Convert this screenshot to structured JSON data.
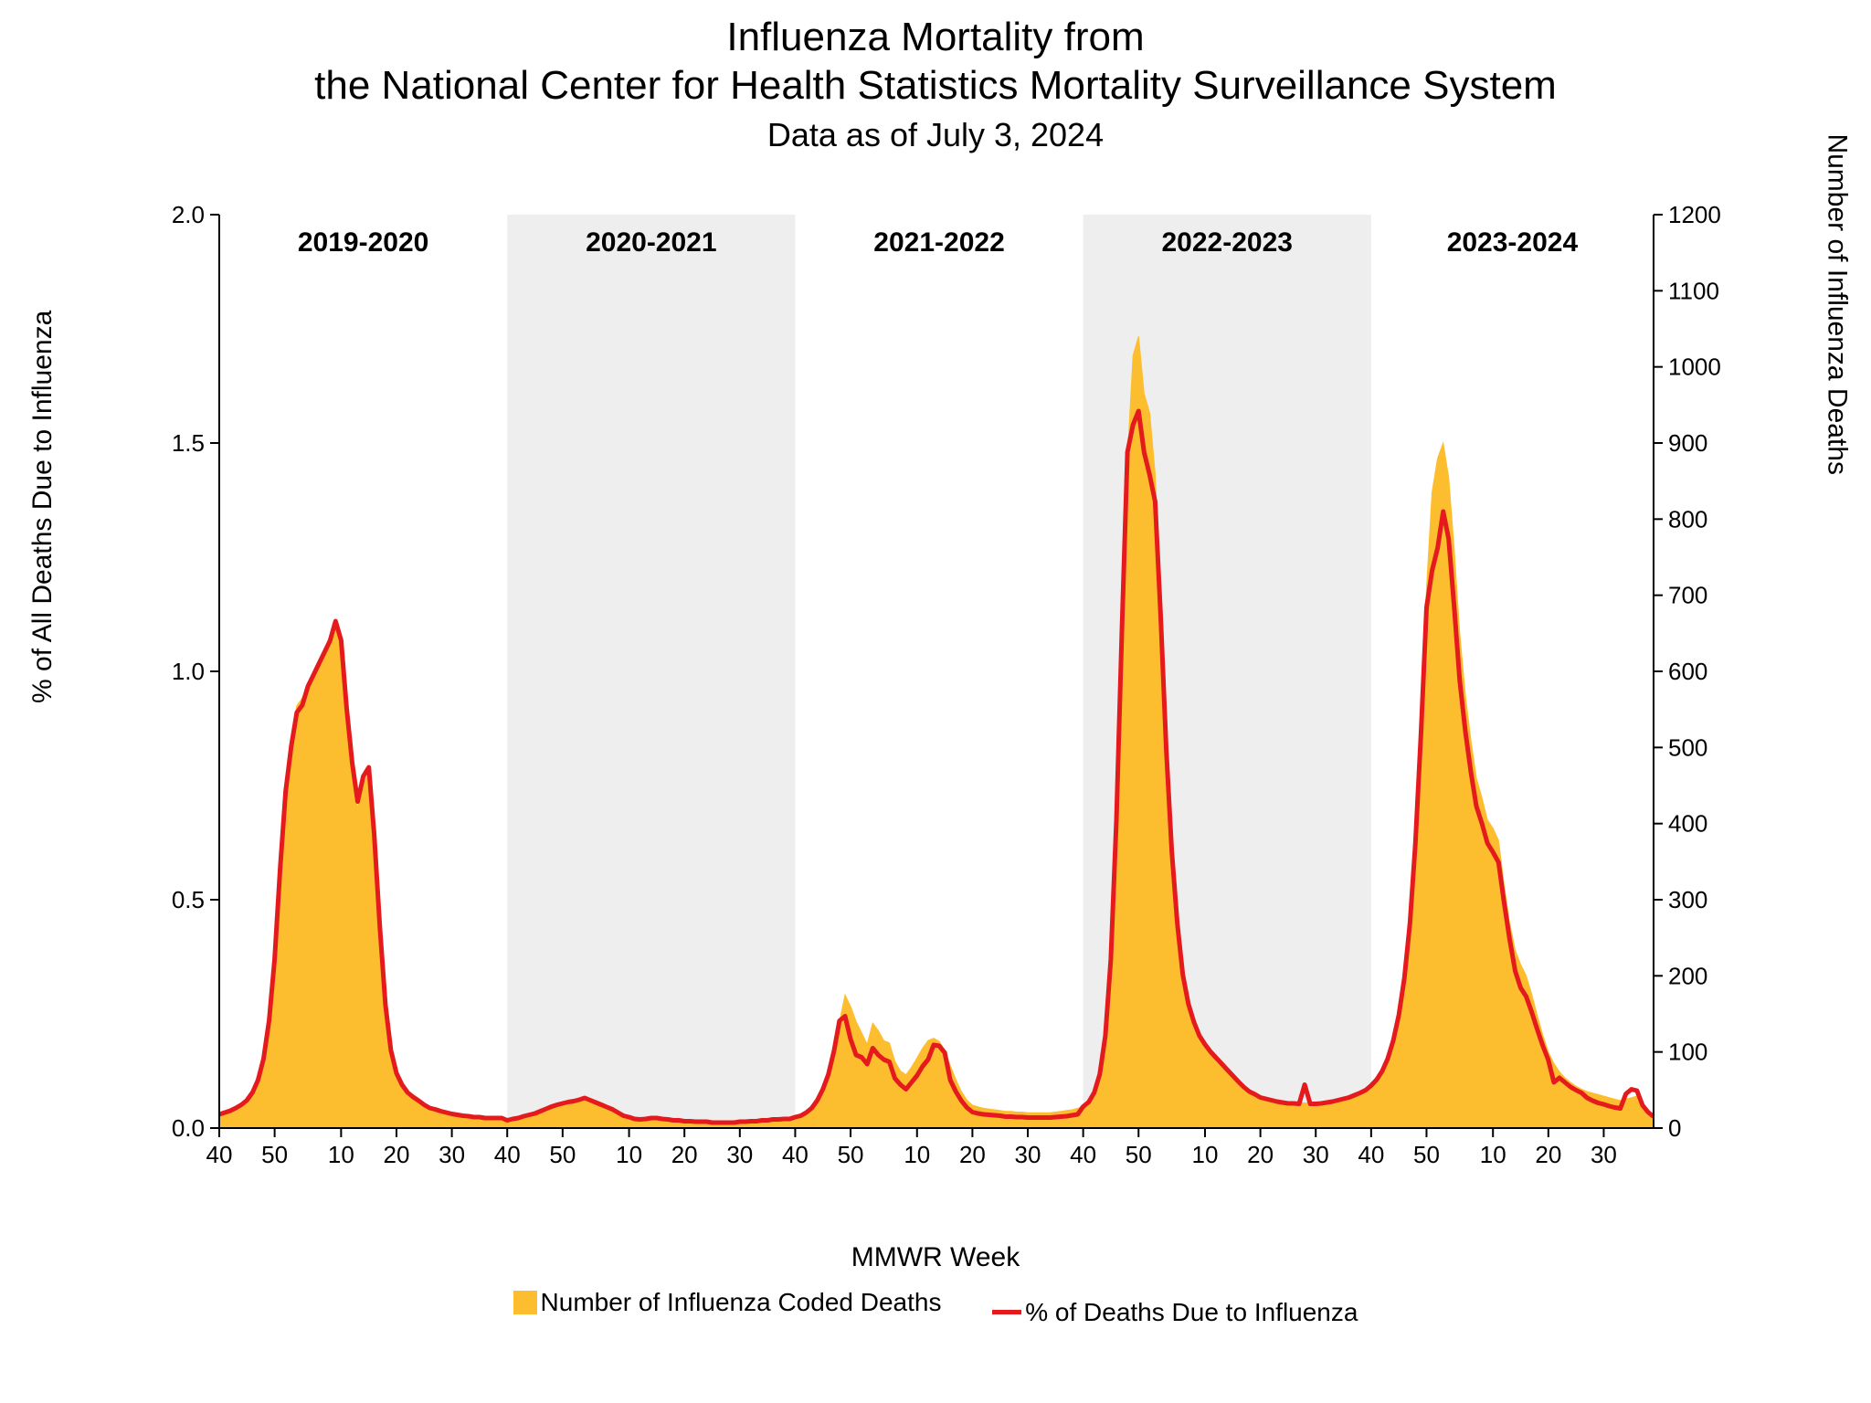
{
  "title": {
    "line1": "Influenza Mortality from",
    "line2": "the National Center for Health Statistics Mortality Surveillance System",
    "subtitle": "Data as of July 3, 2024",
    "title_fontsize": 44,
    "subtitle_fontsize": 36,
    "color": "#000000"
  },
  "chart": {
    "type": "dual-axis-area-line",
    "background_color": "#ffffff",
    "band_bg_color": "#eeeeee",
    "area_fill": "#fcbe2e",
    "area_stroke": "#fcbe2e",
    "line_color": "#e41a1c",
    "line_width": 5,
    "axis_color": "#000000",
    "tick_fontsize": 26,
    "season_label_fontsize": 30,
    "season_labels": [
      "2019-2020",
      "2020-2021",
      "2021-2022",
      "2022-2023",
      "2023-2024"
    ],
    "seasons": 5,
    "weeks_per_season": 52,
    "left_axis": {
      "label": "% of All Deaths Due to Influenza",
      "min": 0.0,
      "max": 2.0,
      "ticks": [
        0.0,
        0.5,
        1.0,
        1.5,
        2.0
      ]
    },
    "right_axis": {
      "label": "Number of Influenza Deaths",
      "min": 0,
      "max": 1200,
      "ticks": [
        0,
        100,
        200,
        300,
        400,
        500,
        600,
        700,
        800,
        900,
        1000,
        1100,
        1200
      ]
    },
    "x_axis": {
      "label": "MMWR Week",
      "tick_labels_per_season": [
        "40",
        "50",
        "10",
        "20",
        "30"
      ],
      "tick_weeks": [
        40,
        50,
        10,
        20,
        30
      ]
    },
    "legend": {
      "area_label": "Number of Influenza Coded Deaths",
      "line_label": "% of Deaths Due to Influenza"
    },
    "series_deaths": [
      18,
      20,
      22,
      26,
      30,
      36,
      46,
      62,
      90,
      140,
      220,
      340,
      440,
      510,
      555,
      565,
      580,
      595,
      610,
      625,
      640,
      655,
      634,
      560,
      470,
      420,
      450,
      470,
      380,
      260,
      160,
      100,
      70,
      55,
      46,
      40,
      35,
      30,
      26,
      24,
      22,
      20,
      18,
      17,
      16,
      15,
      14,
      14,
      13,
      13,
      13,
      13,
      10,
      12,
      13,
      15,
      17,
      19,
      22,
      25,
      28,
      30,
      32,
      34,
      35,
      37,
      39,
      36,
      33,
      30,
      27,
      24,
      20,
      16,
      14,
      12,
      11,
      12,
      13,
      13,
      12,
      11,
      10,
      10,
      9,
      9,
      8,
      8,
      8,
      7,
      7,
      7,
      7,
      7,
      8,
      8,
      9,
      9,
      10,
      10,
      11,
      11,
      12,
      12,
      14,
      16,
      20,
      26,
      36,
      50,
      70,
      100,
      140,
      175,
      160,
      140,
      125,
      110,
      138,
      128,
      115,
      112,
      88,
      75,
      70,
      80,
      92,
      105,
      115,
      118,
      114,
      102,
      82,
      64,
      48,
      37,
      30,
      28,
      26,
      25,
      24,
      23,
      22,
      22,
      21,
      21,
      20,
      20,
      20,
      20,
      20,
      21,
      22,
      23,
      24,
      26,
      28,
      34,
      46,
      70,
      120,
      220,
      400,
      650,
      880,
      1015,
      1040,
      965,
      940,
      860,
      700,
      520,
      380,
      280,
      210,
      170,
      145,
      126,
      114,
      104,
      96,
      88,
      80,
      72,
      64,
      56,
      50,
      46,
      42,
      40,
      38,
      36,
      35,
      34,
      34,
      33,
      33,
      33,
      33,
      34,
      35,
      36,
      38,
      40,
      42,
      45,
      48,
      52,
      58,
      66,
      78,
      95,
      120,
      155,
      205,
      280,
      390,
      540,
      710,
      835,
      880,
      900,
      855,
      760,
      650,
      570,
      510,
      460,
      434,
      405,
      394,
      378,
      320,
      270,
      234,
      215,
      200,
      176,
      148,
      122,
      100,
      85,
      74,
      66,
      60,
      55,
      51,
      48,
      46,
      44,
      42,
      40,
      38,
      36,
      38,
      40,
      42,
      30,
      22,
      15
    ],
    "series_pct": [
      0.03,
      0.034,
      0.038,
      0.044,
      0.051,
      0.061,
      0.078,
      0.105,
      0.152,
      0.236,
      0.37,
      0.57,
      0.738,
      0.836,
      0.91,
      0.926,
      0.967,
      0.992,
      1.017,
      1.042,
      1.067,
      1.11,
      1.068,
      0.92,
      0.8,
      0.715,
      0.77,
      0.79,
      0.64,
      0.44,
      0.27,
      0.17,
      0.12,
      0.095,
      0.078,
      0.068,
      0.06,
      0.051,
      0.044,
      0.041,
      0.037,
      0.034,
      0.031,
      0.029,
      0.027,
      0.026,
      0.024,
      0.024,
      0.022,
      0.022,
      0.022,
      0.022,
      0.017,
      0.02,
      0.022,
      0.026,
      0.029,
      0.032,
      0.037,
      0.042,
      0.047,
      0.051,
      0.054,
      0.057,
      0.059,
      0.062,
      0.066,
      0.061,
      0.056,
      0.051,
      0.046,
      0.041,
      0.034,
      0.027,
      0.024,
      0.02,
      0.019,
      0.02,
      0.022,
      0.022,
      0.02,
      0.019,
      0.017,
      0.017,
      0.015,
      0.015,
      0.014,
      0.014,
      0.014,
      0.012,
      0.012,
      0.012,
      0.012,
      0.012,
      0.014,
      0.014,
      0.015,
      0.015,
      0.017,
      0.017,
      0.019,
      0.019,
      0.02,
      0.02,
      0.024,
      0.027,
      0.034,
      0.044,
      0.061,
      0.085,
      0.118,
      0.169,
      0.235,
      0.245,
      0.195,
      0.16,
      0.155,
      0.14,
      0.175,
      0.16,
      0.15,
      0.145,
      0.109,
      0.095,
      0.085,
      0.1,
      0.115,
      0.135,
      0.15,
      0.182,
      0.18,
      0.165,
      0.105,
      0.08,
      0.06,
      0.045,
      0.035,
      0.032,
      0.03,
      0.029,
      0.028,
      0.027,
      0.025,
      0.025,
      0.024,
      0.024,
      0.023,
      0.023,
      0.023,
      0.023,
      0.023,
      0.024,
      0.025,
      0.026,
      0.028,
      0.03,
      0.047,
      0.057,
      0.078,
      0.118,
      0.202,
      0.37,
      0.673,
      1.094,
      1.48,
      1.54,
      1.57,
      1.48,
      1.43,
      1.372,
      1.12,
      0.829,
      0.607,
      0.448,
      0.336,
      0.272,
      0.232,
      0.202,
      0.183,
      0.167,
      0.154,
      0.141,
      0.128,
      0.115,
      0.102,
      0.09,
      0.08,
      0.074,
      0.067,
      0.064,
      0.061,
      0.058,
      0.056,
      0.054,
      0.054,
      0.053,
      0.095,
      0.053,
      0.053,
      0.054,
      0.056,
      0.058,
      0.061,
      0.064,
      0.067,
      0.072,
      0.077,
      0.083,
      0.093,
      0.106,
      0.125,
      0.152,
      0.192,
      0.248,
      0.328,
      0.448,
      0.624,
      0.864,
      1.14,
      1.22,
      1.27,
      1.35,
      1.29,
      1.14,
      0.98,
      0.87,
      0.78,
      0.705,
      0.667,
      0.624,
      0.604,
      0.582,
      0.495,
      0.414,
      0.344,
      0.307,
      0.288,
      0.254,
      0.216,
      0.18,
      0.149,
      0.1,
      0.11,
      0.1,
      0.09,
      0.083,
      0.077,
      0.066,
      0.06,
      0.055,
      0.052,
      0.048,
      0.045,
      0.043,
      0.075,
      0.085,
      0.082,
      0.05,
      0.035,
      0.025
    ]
  }
}
